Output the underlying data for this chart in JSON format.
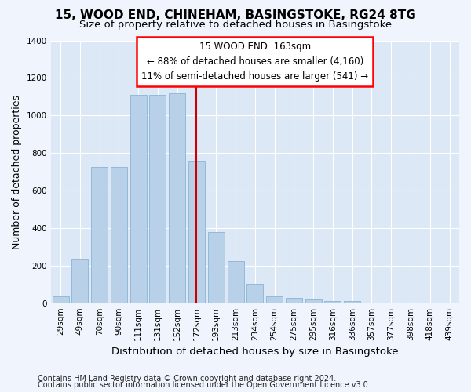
{
  "title": "15, WOOD END, CHINEHAM, BASINGSTOKE, RG24 8TG",
  "subtitle": "Size of property relative to detached houses in Basingstoke",
  "xlabel": "Distribution of detached houses by size in Basingstoke",
  "ylabel": "Number of detached properties",
  "footnote1": "Contains HM Land Registry data © Crown copyright and database right 2024.",
  "footnote2": "Contains public sector information licensed under the Open Government Licence v3.0.",
  "bar_labels": [
    "29sqm",
    "49sqm",
    "70sqm",
    "90sqm",
    "111sqm",
    "131sqm",
    "152sqm",
    "172sqm",
    "193sqm",
    "213sqm",
    "234sqm",
    "254sqm",
    "275sqm",
    "295sqm",
    "316sqm",
    "336sqm",
    "357sqm",
    "377sqm",
    "398sqm",
    "418sqm",
    "439sqm"
  ],
  "bar_values": [
    35,
    235,
    725,
    725,
    1110,
    1110,
    1120,
    760,
    380,
    225,
    105,
    37,
    28,
    20,
    12,
    10,
    0,
    0,
    0,
    0,
    0
  ],
  "bar_color": "#b8d0e8",
  "bar_edge_color": "#7aaed0",
  "vline_x": 7.0,
  "vline_color": "#cc0000",
  "annotation_title": "15 WOOD END: 163sqm",
  "annotation_line1": "← 88% of detached houses are smaller (4,160)",
  "annotation_line2": "11% of semi-detached houses are larger (541) →",
  "ylim": [
    0,
    1400
  ],
  "yticks": [
    0,
    200,
    400,
    600,
    800,
    1000,
    1200,
    1400
  ],
  "bg_color": "#dce8f5",
  "grid_color": "#ffffff",
  "fig_bg_color": "#f0f4fc",
  "title_fontsize": 11,
  "subtitle_fontsize": 9.5,
  "axis_label_fontsize": 9,
  "tick_fontsize": 7.5,
  "annotation_fontsize": 8.5,
  "footnote_fontsize": 7
}
